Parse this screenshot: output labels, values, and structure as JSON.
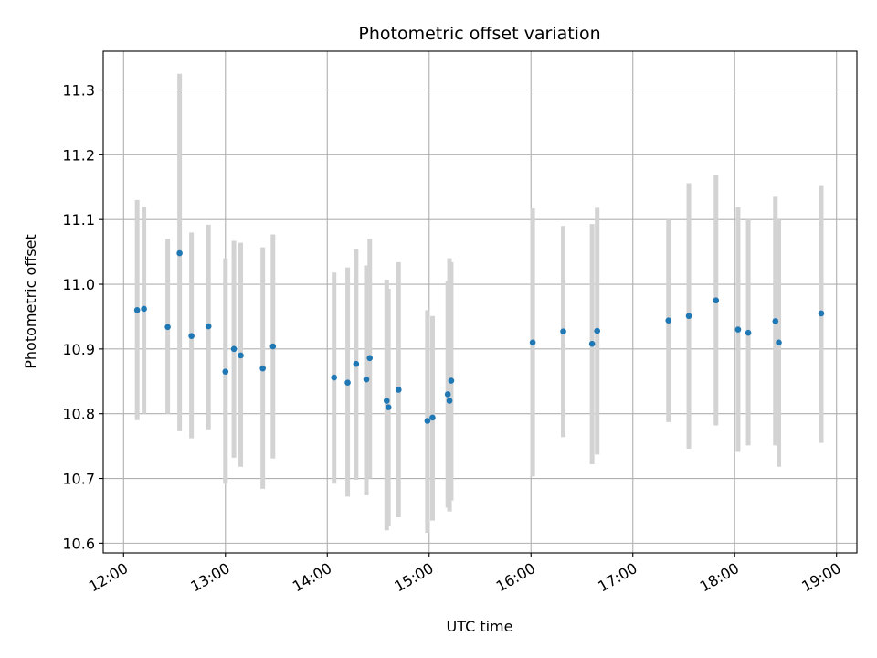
{
  "chart_data": {
    "type": "scatter",
    "title": "Photometric offset variation",
    "xlabel": "UTC time",
    "ylabel": "Photometric offset",
    "x_axis_type": "time",
    "xlim": [
      "11:48",
      "19:12"
    ],
    "ylim": [
      10.585,
      11.36
    ],
    "x_ticks": [
      "12:00",
      "13:00",
      "14:00",
      "15:00",
      "16:00",
      "17:00",
      "18:00",
      "19:00"
    ],
    "y_ticks": [
      10.6,
      10.7,
      10.8,
      10.9,
      11.0,
      11.1,
      11.2,
      11.3
    ],
    "y_tick_labels": [
      "10.6",
      "10.7",
      "10.8",
      "10.9",
      "11.0",
      "11.1",
      "11.2",
      "11.3"
    ],
    "grid": true,
    "legend": "none",
    "x_tick_rotation_deg": 30,
    "colors": {
      "point": "#1f77b4",
      "errorbar": "#d3d3d3",
      "grid": "#b0b0b0"
    },
    "points": [
      {
        "x": "12:08",
        "y": 10.96,
        "low": 10.79,
        "high": 11.13
      },
      {
        "x": "12:12",
        "y": 10.962,
        "low": 10.8,
        "high": 11.12
      },
      {
        "x": "12:26",
        "y": 10.934,
        "low": 10.8,
        "high": 11.07
      },
      {
        "x": "12:33",
        "y": 11.048,
        "low": 10.773,
        "high": 11.325
      },
      {
        "x": "12:40",
        "y": 10.92,
        "low": 10.762,
        "high": 11.08
      },
      {
        "x": "12:50",
        "y": 10.935,
        "low": 10.776,
        "high": 11.092
      },
      {
        "x": "13:00",
        "y": 10.865,
        "low": 10.692,
        "high": 11.04
      },
      {
        "x": "13:05",
        "y": 10.9,
        "low": 10.732,
        "high": 11.067
      },
      {
        "x": "13:09",
        "y": 10.89,
        "low": 10.718,
        "high": 11.064
      },
      {
        "x": "13:22",
        "y": 10.87,
        "low": 10.684,
        "high": 11.057
      },
      {
        "x": "13:28",
        "y": 10.904,
        "low": 10.731,
        "high": 11.077
      },
      {
        "x": "14:04",
        "y": 10.856,
        "low": 10.692,
        "high": 11.018
      },
      {
        "x": "14:12",
        "y": 10.848,
        "low": 10.672,
        "high": 11.026
      },
      {
        "x": "14:17",
        "y": 10.877,
        "low": 10.698,
        "high": 11.054
      },
      {
        "x": "14:23",
        "y": 10.853,
        "low": 10.674,
        "high": 11.029
      },
      {
        "x": "14:25",
        "y": 10.886,
        "low": 10.7,
        "high": 11.07
      },
      {
        "x": "14:35",
        "y": 10.82,
        "low": 10.62,
        "high": 11.007
      },
      {
        "x": "14:36",
        "y": 10.81,
        "low": 10.626,
        "high": 10.993
      },
      {
        "x": "14:42",
        "y": 10.837,
        "low": 10.64,
        "high": 11.034
      },
      {
        "x": "14:59",
        "y": 10.789,
        "low": 10.616,
        "high": 10.96
      },
      {
        "x": "15:02",
        "y": 10.794,
        "low": 10.635,
        "high": 10.951
      },
      {
        "x": "15:11",
        "y": 10.83,
        "low": 10.655,
        "high": 11.005
      },
      {
        "x": "15:12",
        "y": 10.82,
        "low": 10.649,
        "high": 11.04
      },
      {
        "x": "15:13",
        "y": 10.851,
        "low": 10.666,
        "high": 11.034
      },
      {
        "x": "16:01",
        "y": 10.91,
        "low": 10.703,
        "high": 11.117
      },
      {
        "x": "16:19",
        "y": 10.927,
        "low": 10.764,
        "high": 11.09
      },
      {
        "x": "16:36",
        "y": 10.908,
        "low": 10.722,
        "high": 11.093
      },
      {
        "x": "16:39",
        "y": 10.928,
        "low": 10.737,
        "high": 11.118
      },
      {
        "x": "17:21",
        "y": 10.944,
        "low": 10.787,
        "high": 11.1
      },
      {
        "x": "17:33",
        "y": 10.951,
        "low": 10.746,
        "high": 11.156
      },
      {
        "x": "17:49",
        "y": 10.975,
        "low": 10.782,
        "high": 11.168
      },
      {
        "x": "18:02",
        "y": 10.93,
        "low": 10.741,
        "high": 11.119
      },
      {
        "x": "18:08",
        "y": 10.925,
        "low": 10.751,
        "high": 11.1
      },
      {
        "x": "18:24",
        "y": 10.943,
        "low": 10.751,
        "high": 11.135
      },
      {
        "x": "18:26",
        "y": 10.91,
        "low": 10.718,
        "high": 11.1
      },
      {
        "x": "18:51",
        "y": 10.955,
        "low": 10.755,
        "high": 11.153
      }
    ]
  }
}
